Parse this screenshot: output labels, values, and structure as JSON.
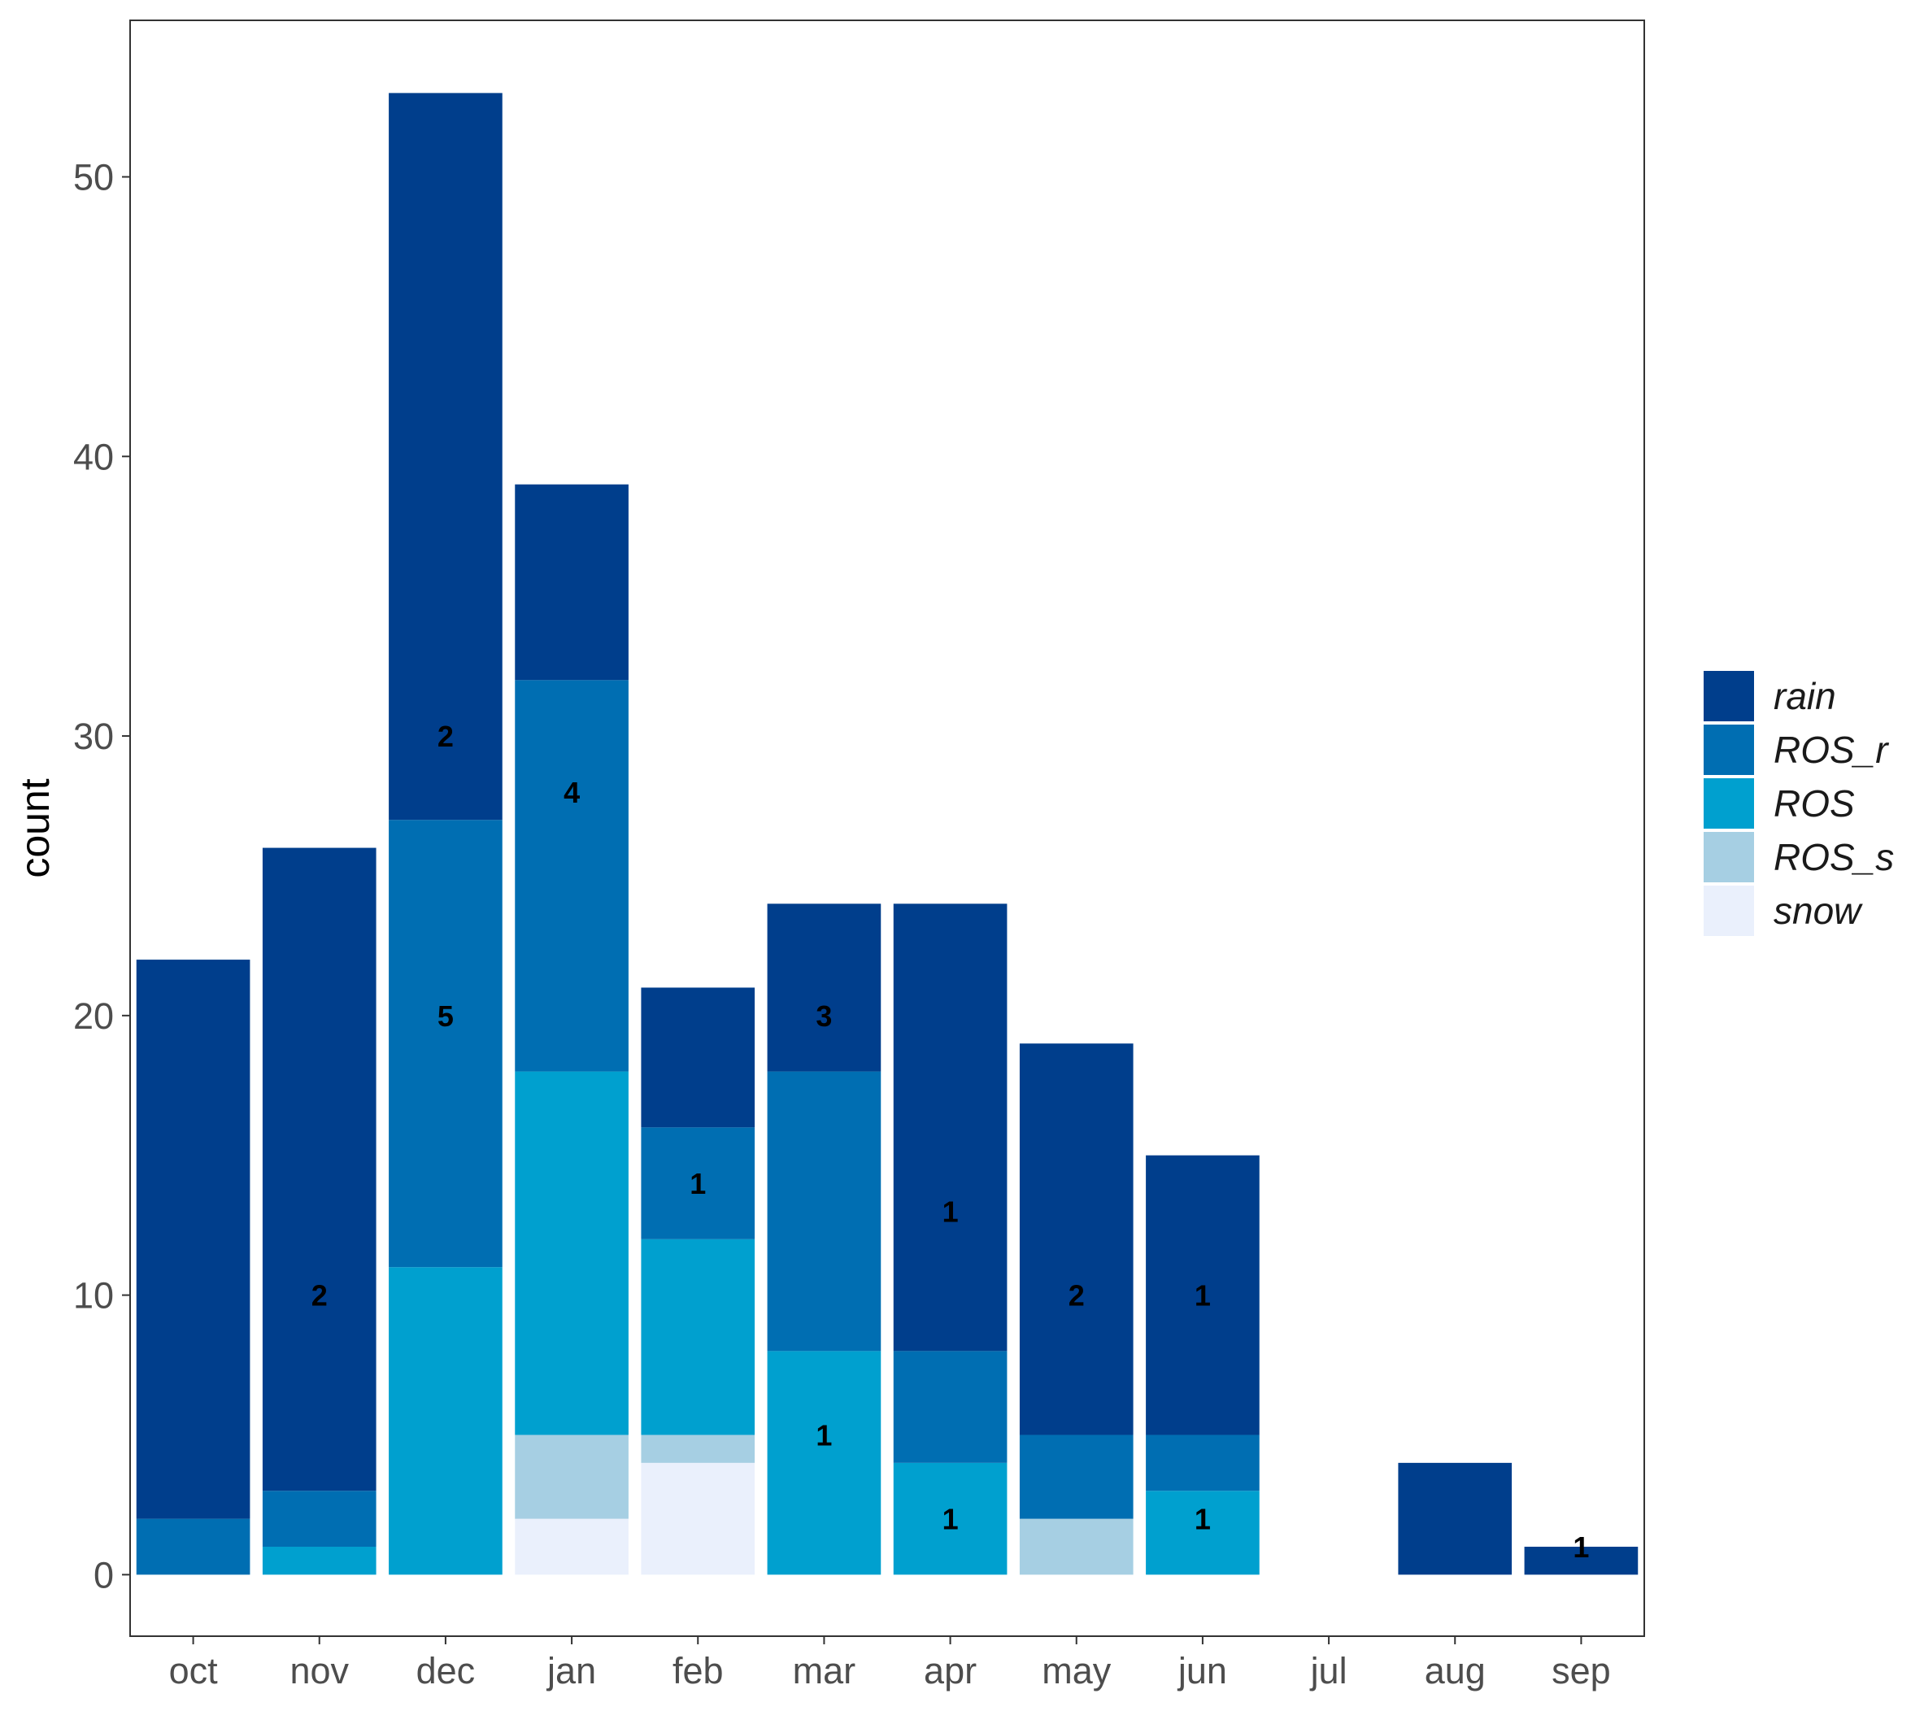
{
  "chart_data": {
    "type": "bar",
    "stacked": true,
    "title": "",
    "xlabel": "",
    "ylabel": "count",
    "ylim": [
      -2.2,
      55.6
    ],
    "yticks": [
      0,
      10,
      20,
      30,
      40,
      50
    ],
    "grid": false,
    "legend_position": "right",
    "categories": [
      "oct",
      "nov",
      "dec",
      "jan",
      "feb",
      "mar",
      "apr",
      "may",
      "jun",
      "jul",
      "aug",
      "sep"
    ],
    "series": [
      {
        "name": "snow",
        "color": "#eaf0fc",
        "values": [
          0,
          0,
          0,
          2,
          4,
          0,
          0,
          0,
          0,
          0,
          0,
          0
        ]
      },
      {
        "name": "ROS_s",
        "color": "#a6cfe3",
        "values": [
          0,
          0,
          0,
          3,
          1,
          0,
          0,
          2,
          0,
          0,
          0,
          0
        ]
      },
      {
        "name": "ROS",
        "color": "#00a0cf",
        "values": [
          0,
          1,
          11,
          13,
          7,
          8,
          4,
          0,
          3,
          0,
          0,
          0
        ]
      },
      {
        "name": "ROS_r",
        "color": "#006eb2",
        "values": [
          2,
          2,
          16,
          14,
          4,
          10,
          4,
          3,
          2,
          0,
          0,
          0
        ]
      },
      {
        "name": "rain",
        "color": "#003e8c",
        "values": [
          20,
          23,
          26,
          7,
          5,
          6,
          16,
          14,
          10,
          0,
          4,
          1
        ]
      }
    ],
    "legend_order": [
      "rain",
      "ROS_r",
      "ROS",
      "ROS_s",
      "snow"
    ],
    "annotations": [
      {
        "category": "nov",
        "y": 10,
        "text": "2"
      },
      {
        "category": "dec",
        "y": 30,
        "text": "2"
      },
      {
        "category": "dec",
        "y": 20,
        "text": "5"
      },
      {
        "category": "jan",
        "y": 28,
        "text": "4"
      },
      {
        "category": "feb",
        "y": 14,
        "text": "1"
      },
      {
        "category": "mar",
        "y": 20,
        "text": "3"
      },
      {
        "category": "mar",
        "y": 5,
        "text": "1"
      },
      {
        "category": "apr",
        "y": 13,
        "text": "1"
      },
      {
        "category": "apr",
        "y": 2,
        "text": "1"
      },
      {
        "category": "may",
        "y": 10,
        "text": "2"
      },
      {
        "category": "jun",
        "y": 10,
        "text": "1"
      },
      {
        "category": "jun",
        "y": 2,
        "text": "1"
      },
      {
        "category": "sep",
        "y": 1,
        "text": "1"
      }
    ]
  }
}
